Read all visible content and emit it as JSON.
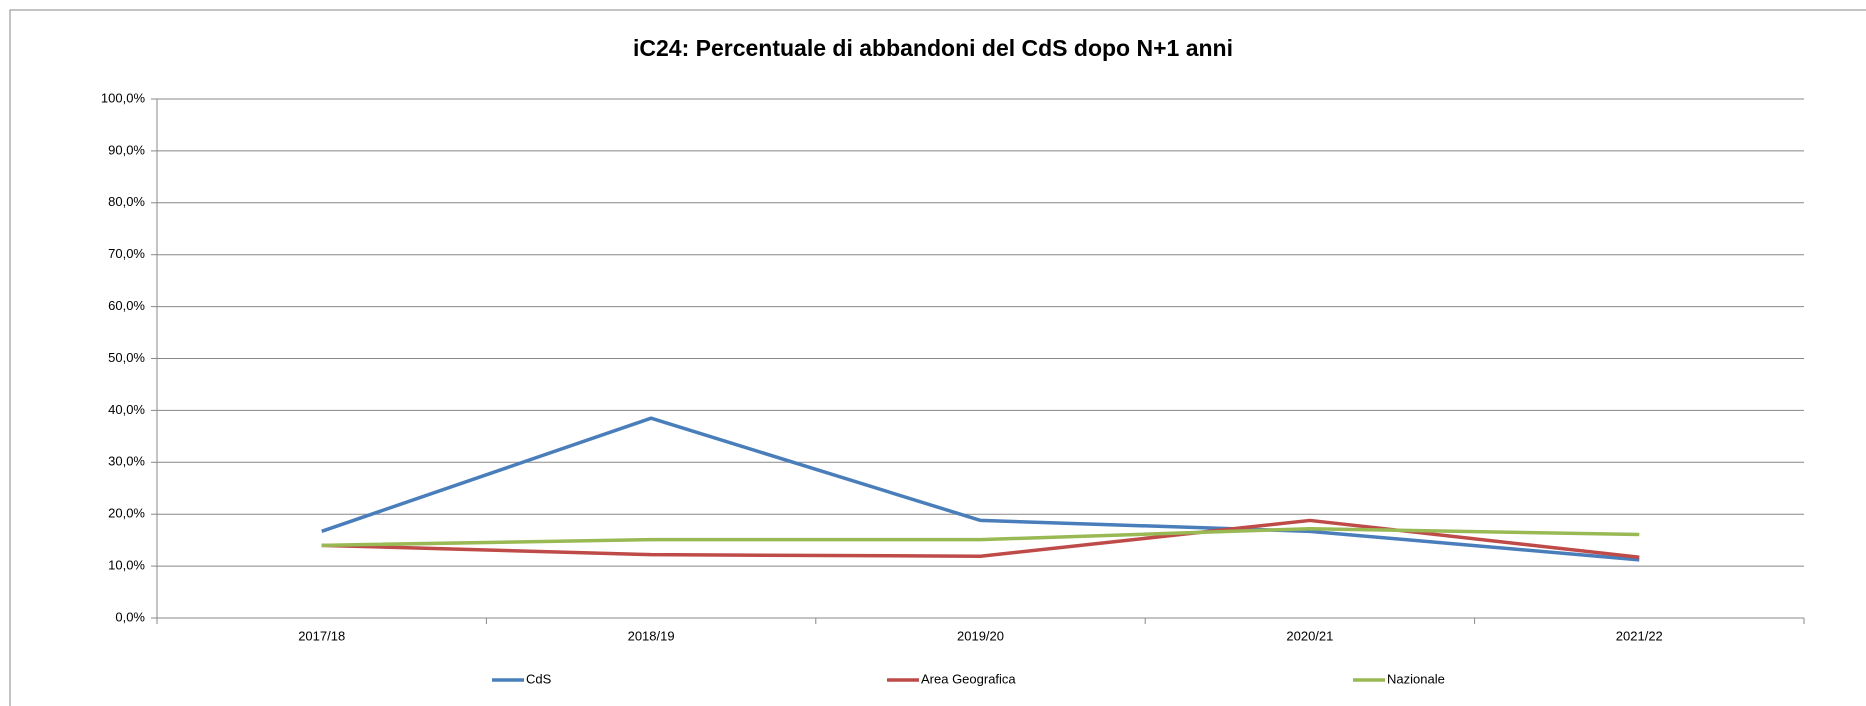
{
  "chart_data": {
    "type": "line",
    "title": "iC24: Percentuale di abbandoni del CdS dopo N+1 anni",
    "categories": [
      "2017/18",
      "2018/19",
      "2019/20",
      "2020/21",
      "2021/22"
    ],
    "series": [
      {
        "name": "CdS",
        "color": "#4a7ebb",
        "values": [
          16.7,
          38.5,
          18.8,
          16.7,
          11.2
        ]
      },
      {
        "name": "Area Geografica",
        "color": "#be4b48",
        "values": [
          14.0,
          12.2,
          11.9,
          18.8,
          11.7
        ]
      },
      {
        "name": "Nazionale",
        "color": "#98b954",
        "values": [
          14.0,
          15.1,
          15.1,
          17.2,
          16.1
        ]
      }
    ],
    "ylim": [
      0,
      100
    ],
    "yticks": [
      {
        "value": 0,
        "label": "0,0%"
      },
      {
        "value": 10,
        "label": "10,0%"
      },
      {
        "value": 20,
        "label": "20,0%"
      },
      {
        "value": 30,
        "label": "30,0%"
      },
      {
        "value": 40,
        "label": "40,0%"
      },
      {
        "value": 50,
        "label": "50,0%"
      },
      {
        "value": 60,
        "label": "60,0%"
      },
      {
        "value": 70,
        "label": "70,0%"
      },
      {
        "value": 80,
        "label": "80,0%"
      },
      {
        "value": 90,
        "label": "90,0%"
      },
      {
        "value": 100,
        "label": "100,0%"
      }
    ],
    "grid": true,
    "legend": "bottom"
  }
}
